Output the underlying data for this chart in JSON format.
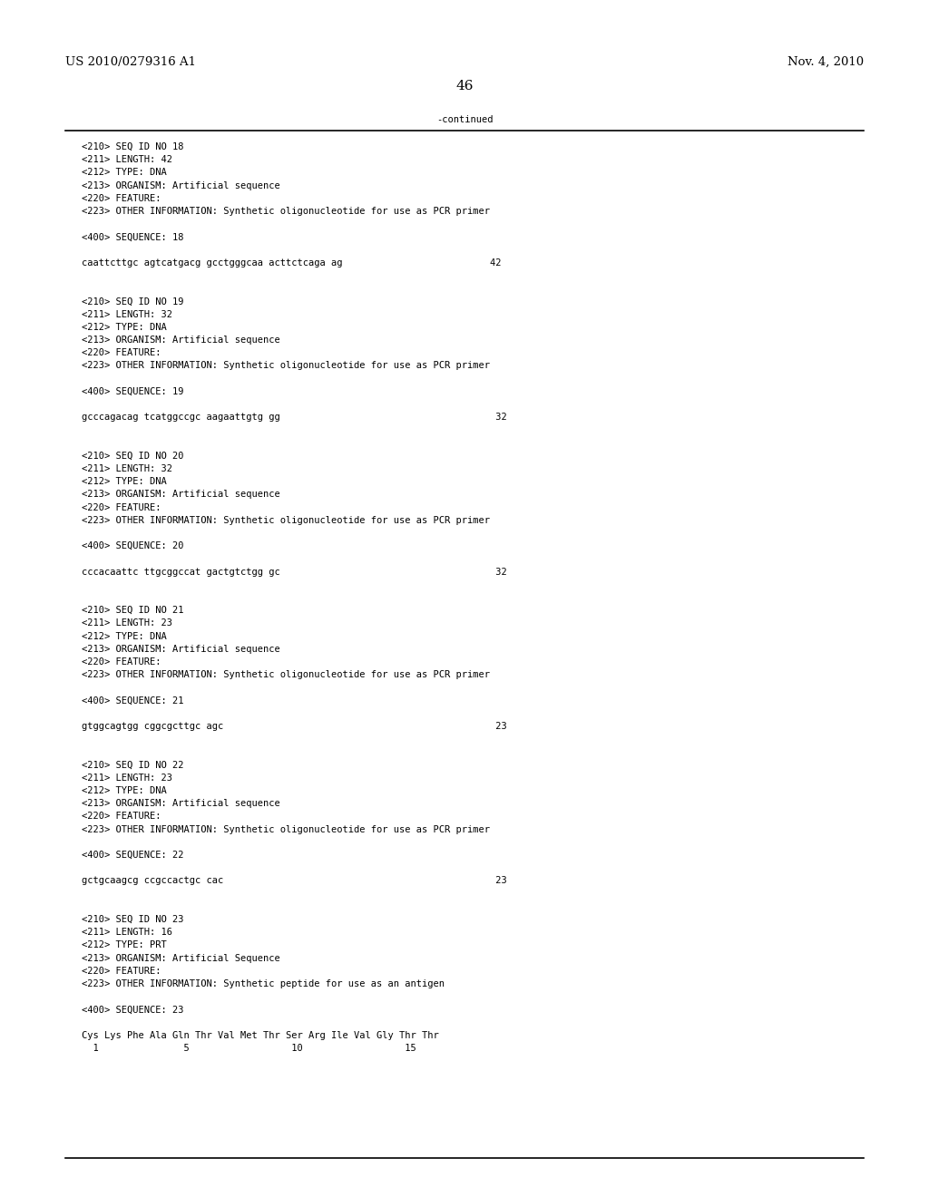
{
  "header_left": "US 2010/0279316 A1",
  "header_right": "Nov. 4, 2010",
  "page_number": "46",
  "continued_label": "-continued",
  "background_color": "#ffffff",
  "text_color": "#000000",
  "font_size_header": 9.5,
  "font_size_body": 7.5,
  "font_size_page": 11,
  "line_color": "#000000",
  "content": [
    "<210> SEQ ID NO 18",
    "<211> LENGTH: 42",
    "<212> TYPE: DNA",
    "<213> ORGANISM: Artificial sequence",
    "<220> FEATURE:",
    "<223> OTHER INFORMATION: Synthetic oligonucleotide for use as PCR primer",
    "",
    "<400> SEQUENCE: 18",
    "",
    "caattcttgc agtcatgacg gcctgggcaa acttctcaga ag                          42",
    "",
    "",
    "<210> SEQ ID NO 19",
    "<211> LENGTH: 32",
    "<212> TYPE: DNA",
    "<213> ORGANISM: Artificial sequence",
    "<220> FEATURE:",
    "<223> OTHER INFORMATION: Synthetic oligonucleotide for use as PCR primer",
    "",
    "<400> SEQUENCE: 19",
    "",
    "gcccagacag tcatggccgc aagaattgtg gg                                      32",
    "",
    "",
    "<210> SEQ ID NO 20",
    "<211> LENGTH: 32",
    "<212> TYPE: DNA",
    "<213> ORGANISM: Artificial sequence",
    "<220> FEATURE:",
    "<223> OTHER INFORMATION: Synthetic oligonucleotide for use as PCR primer",
    "",
    "<400> SEQUENCE: 20",
    "",
    "cccacaattc ttgcggccat gactgtctgg gc                                      32",
    "",
    "",
    "<210> SEQ ID NO 21",
    "<211> LENGTH: 23",
    "<212> TYPE: DNA",
    "<213> ORGANISM: Artificial sequence",
    "<220> FEATURE:",
    "<223> OTHER INFORMATION: Synthetic oligonucleotide for use as PCR primer",
    "",
    "<400> SEQUENCE: 21",
    "",
    "gtggcagtgg cggcgcttgc agc                                                23",
    "",
    "",
    "<210> SEQ ID NO 22",
    "<211> LENGTH: 23",
    "<212> TYPE: DNA",
    "<213> ORGANISM: Artificial sequence",
    "<220> FEATURE:",
    "<223> OTHER INFORMATION: Synthetic oligonucleotide for use as PCR primer",
    "",
    "<400> SEQUENCE: 22",
    "",
    "gctgcaagcg ccgccactgc cac                                                23",
    "",
    "",
    "<210> SEQ ID NO 23",
    "<211> LENGTH: 16",
    "<212> TYPE: PRT",
    "<213> ORGANISM: Artificial Sequence",
    "<220> FEATURE:",
    "<223> OTHER INFORMATION: Synthetic peptide for use as an antigen",
    "",
    "<400> SEQUENCE: 23",
    "",
    "Cys Lys Phe Ala Gln Thr Val Met Thr Ser Arg Ile Val Gly Thr Thr",
    "  1               5                  10                  15"
  ]
}
